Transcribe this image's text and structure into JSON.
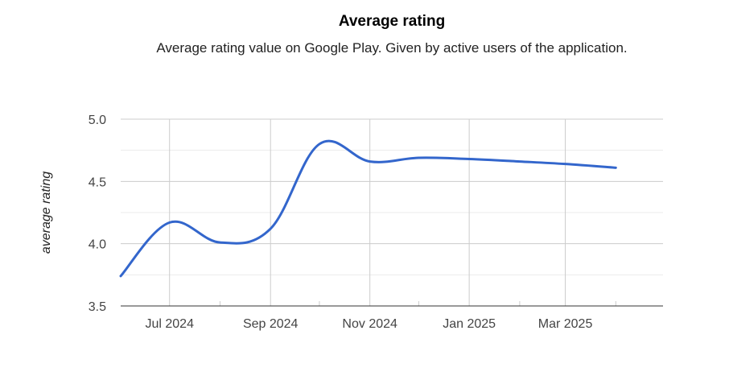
{
  "chart_data": {
    "type": "line",
    "title": "Average rating",
    "subtitle": "Average rating value on Google Play. Given by active users of the application.",
    "xlabel": "",
    "ylabel": "average rating",
    "y_ticks": [
      "3.5",
      "4.0",
      "4.5",
      "5.0"
    ],
    "ylim": [
      3.5,
      5.0
    ],
    "x_range": [
      "2024-06-01",
      "2025-04-30"
    ],
    "x_ticks": [
      {
        "date": "2024-07-01",
        "label": "Jul 2024"
      },
      {
        "date": "2024-09-01",
        "label": "Sep 2024"
      },
      {
        "date": "2024-11-01",
        "label": "Nov 2024"
      },
      {
        "date": "2025-01-01",
        "label": "Jan 2025"
      },
      {
        "date": "2025-03-01",
        "label": "Mar 2025"
      }
    ],
    "x_minor_ticks": [
      "2024-08-01",
      "2024-10-01",
      "2024-12-01",
      "2025-02-01",
      "2025-04-01"
    ],
    "grid": true,
    "series_color": "#3366cc",
    "series": [
      {
        "x": [
          "2024-06-01",
          "2024-07-01",
          "2024-08-01",
          "2024-09-01",
          "2024-10-01",
          "2024-11-01",
          "2024-12-01",
          "2025-01-01",
          "2025-02-01",
          "2025-03-01",
          "2025-04-01"
        ],
        "values": [
          3.74,
          4.17,
          4.01,
          4.12,
          4.8,
          4.66,
          4.69,
          4.68,
          4.66,
          4.64,
          4.61
        ]
      }
    ]
  }
}
